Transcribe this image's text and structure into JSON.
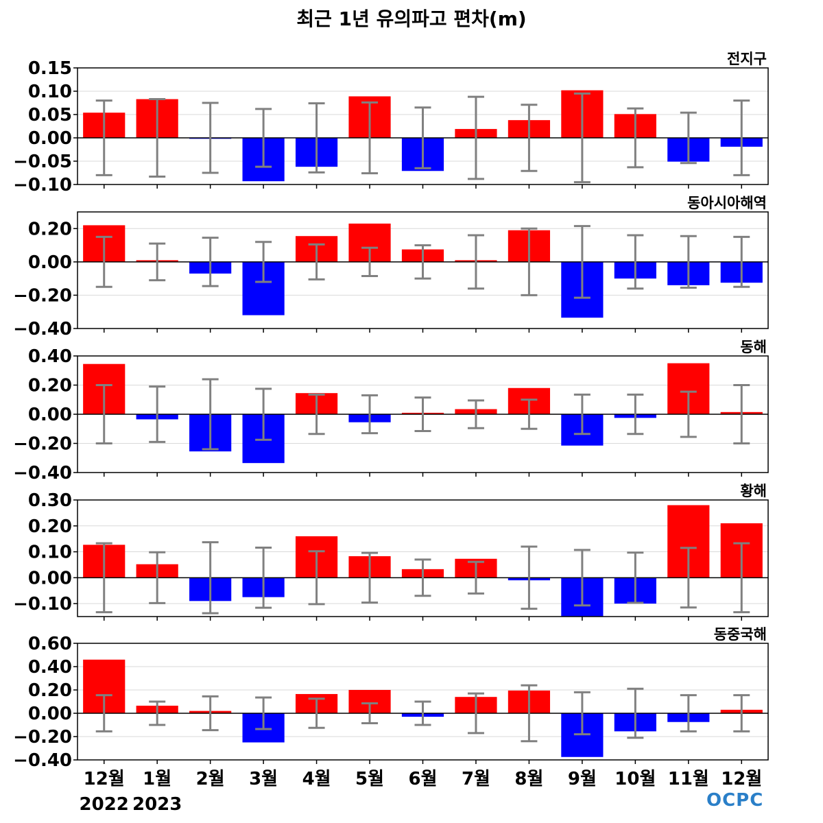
{
  "title": "최근 1년 유의파고 편차(m)",
  "logo_text": "OCPC",
  "colors": {
    "positive": "#ff0000",
    "negative": "#0000ff",
    "error_bar": "#808080",
    "grid": "#d9d9d9",
    "zero_line": "#000000"
  },
  "chart_data": [
    {
      "type": "bar",
      "name": "전지구",
      "categories": [
        "12월",
        "1월",
        "2월",
        "3월",
        "4월",
        "5월",
        "6월",
        "7월",
        "8월",
        "9월",
        "10월",
        "11월",
        "12월"
      ],
      "values": [
        0.054,
        0.083,
        -0.002,
        -0.093,
        -0.062,
        0.089,
        -0.071,
        0.019,
        0.038,
        0.102,
        0.051,
        -0.051,
        -0.019
      ],
      "error": [
        0.08,
        0.083,
        0.075,
        0.062,
        0.074,
        0.076,
        0.065,
        0.088,
        0.071,
        0.095,
        0.063,
        0.054,
        0.08
      ],
      "ylim": [
        -0.1,
        0.15
      ],
      "yticks": [
        -0.1,
        -0.05,
        0.0,
        0.05,
        0.1,
        0.15
      ],
      "ytick_labels": [
        "−0.10",
        "−0.05",
        "0.00",
        "0.05",
        "0.10",
        "0.15"
      ],
      "grid": true
    },
    {
      "type": "bar",
      "name": "동아시아해역",
      "categories": [
        "12월",
        "1월",
        "2월",
        "3월",
        "4월",
        "5월",
        "6월",
        "7월",
        "8월",
        "9월",
        "10월",
        "11월",
        "12월"
      ],
      "values": [
        0.22,
        0.01,
        -0.07,
        -0.32,
        0.155,
        0.23,
        0.075,
        0.01,
        0.19,
        -0.335,
        -0.1,
        -0.14,
        -0.125
      ],
      "error": [
        0.15,
        0.11,
        0.145,
        0.12,
        0.105,
        0.085,
        0.1,
        0.16,
        0.2,
        0.215,
        0.16,
        0.155,
        0.15
      ],
      "ylim": [
        -0.4,
        0.3
      ],
      "yticks": [
        -0.4,
        -0.2,
        0.0,
        0.2
      ],
      "ytick_labels": [
        "−0.40",
        "−0.20",
        "0.00",
        "0.20"
      ],
      "grid": true
    },
    {
      "type": "bar",
      "name": "동해",
      "categories": [
        "12월",
        "1월",
        "2월",
        "3월",
        "4월",
        "5월",
        "6월",
        "7월",
        "8월",
        "9월",
        "10월",
        "11월",
        "12월"
      ],
      "values": [
        0.345,
        -0.035,
        -0.255,
        -0.335,
        0.145,
        -0.055,
        0.01,
        0.035,
        0.18,
        -0.215,
        -0.025,
        0.35,
        0.015
      ],
      "error": [
        0.2,
        0.19,
        0.24,
        0.175,
        0.135,
        0.13,
        0.115,
        0.095,
        0.1,
        0.135,
        0.135,
        0.155,
        0.2
      ],
      "ylim": [
        -0.4,
        0.4
      ],
      "yticks": [
        -0.4,
        -0.2,
        0.0,
        0.2,
        0.4
      ],
      "ytick_labels": [
        "−0.40",
        "−0.20",
        "0.00",
        "0.20",
        "0.40"
      ],
      "grid": true
    },
    {
      "type": "bar",
      "name": "황해",
      "categories": [
        "12월",
        "1월",
        "2월",
        "3월",
        "4월",
        "5월",
        "6월",
        "7월",
        "8월",
        "9월",
        "10월",
        "11월",
        "12월"
      ],
      "values": [
        0.127,
        0.052,
        -0.09,
        -0.075,
        0.16,
        0.083,
        0.033,
        0.073,
        -0.01,
        -0.15,
        -0.1,
        0.28,
        0.21
      ],
      "error": [
        0.133,
        0.098,
        0.137,
        0.116,
        0.102,
        0.096,
        0.07,
        0.061,
        0.12,
        0.107,
        0.097,
        0.115,
        0.133
      ],
      "ylim": [
        -0.15,
        0.3
      ],
      "yticks": [
        -0.1,
        0.0,
        0.1,
        0.2,
        0.3
      ],
      "ytick_labels": [
        "−0.10",
        "0.00",
        "0.10",
        "0.20",
        "0.30"
      ],
      "grid": true
    },
    {
      "type": "bar",
      "name": "동중국해",
      "categories": [
        "12월",
        "1월",
        "2월",
        "3월",
        "4월",
        "5월",
        "6월",
        "7월",
        "8월",
        "9월",
        "10월",
        "11월",
        "12월"
      ],
      "values": [
        0.46,
        0.065,
        0.02,
        -0.25,
        0.165,
        0.2,
        -0.03,
        0.14,
        0.195,
        -0.375,
        -0.155,
        -0.075,
        0.03
      ],
      "error": [
        0.155,
        0.1,
        0.145,
        0.135,
        0.125,
        0.085,
        0.1,
        0.17,
        0.24,
        0.18,
        0.21,
        0.155,
        0.155
      ],
      "ylim": [
        -0.4,
        0.6
      ],
      "yticks": [
        -0.4,
        -0.2,
        0.0,
        0.2,
        0.4,
        0.6
      ],
      "ytick_labels": [
        "−0.40",
        "−0.20",
        "0.00",
        "0.20",
        "0.40",
        "0.60"
      ],
      "grid": true
    }
  ],
  "x_axis": {
    "labels": [
      "12월",
      "1월",
      "2월",
      "3월",
      "4월",
      "5월",
      "6월",
      "7월",
      "8월",
      "9월",
      "10월",
      "11월",
      "12월"
    ],
    "year_labels": [
      {
        "text": "2022",
        "category_index": 0
      },
      {
        "text": "2023",
        "category_index": 1
      }
    ]
  }
}
